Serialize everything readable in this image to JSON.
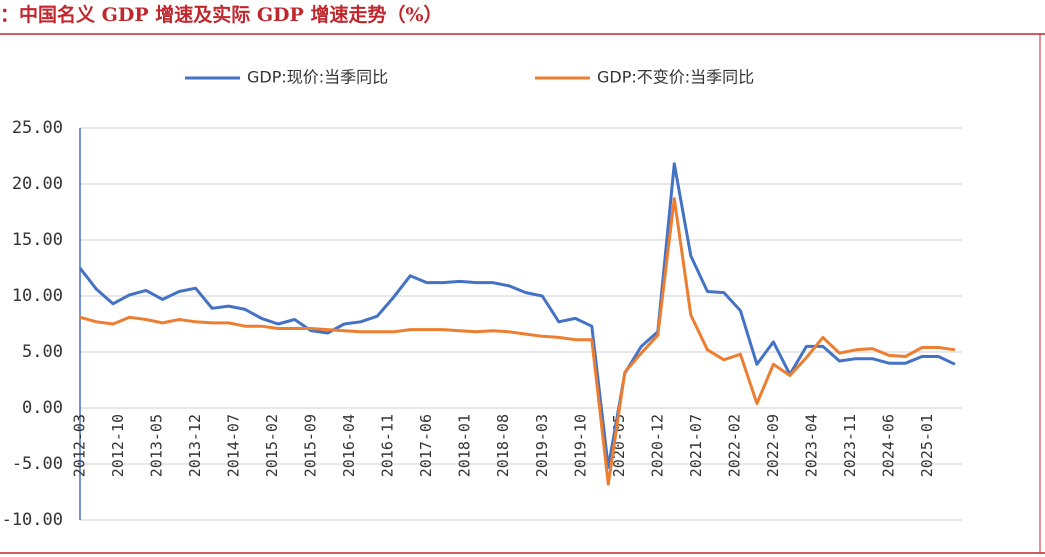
{
  "chart_data": {
    "type": "line",
    "title": "：中国名义 GDP 增速及实际 GDP 增速走势（%）",
    "x": [
      "2012-03",
      "2012-06",
      "2012-09",
      "2012-12",
      "2013-03",
      "2013-06",
      "2013-09",
      "2013-12",
      "2014-03",
      "2014-06",
      "2014-09",
      "2014-12",
      "2015-03",
      "2015-06",
      "2015-09",
      "2015-12",
      "2016-03",
      "2016-06",
      "2016-09",
      "2016-12",
      "2017-03",
      "2017-06",
      "2017-09",
      "2017-12",
      "2018-03",
      "2018-06",
      "2018-09",
      "2018-12",
      "2019-03",
      "2019-06",
      "2019-09",
      "2019-12",
      "2020-03",
      "2020-06",
      "2020-09",
      "2020-12",
      "2021-03",
      "2021-06",
      "2021-09",
      "2021-12",
      "2022-03",
      "2022-06",
      "2022-09",
      "2022-12",
      "2023-03",
      "2023-06",
      "2023-09",
      "2023-12",
      "2024-03",
      "2024-06",
      "2024-09",
      "2024-12",
      "2025-03",
      "2025-06"
    ],
    "series": [
      {
        "name": "GDP:现价:当季同比",
        "color": "#4472c4",
        "values": [
          12.5,
          10.6,
          9.3,
          10.1,
          10.5,
          9.7,
          10.4,
          10.7,
          8.9,
          9.1,
          8.8,
          8.0,
          7.5,
          7.9,
          6.9,
          6.7,
          7.5,
          7.7,
          8.2,
          9.9,
          11.8,
          11.2,
          11.2,
          11.3,
          11.2,
          11.2,
          10.9,
          10.3,
          10.0,
          7.7,
          8.0,
          7.3,
          -5.3,
          3.1,
          5.5,
          6.8,
          21.8,
          13.6,
          10.4,
          10.3,
          8.7,
          3.9,
          5.9,
          3.0,
          5.5,
          5.5,
          4.2,
          4.4,
          4.4,
          4.0,
          4.0,
          4.6,
          4.6,
          3.9
        ]
      },
      {
        "name": "GDP:不变价:当季同比",
        "color": "#ed7d31",
        "values": [
          8.1,
          7.7,
          7.5,
          8.1,
          7.9,
          7.6,
          7.9,
          7.7,
          7.6,
          7.6,
          7.3,
          7.3,
          7.1,
          7.1,
          7.1,
          7.0,
          6.9,
          6.8,
          6.8,
          6.8,
          7.0,
          7.0,
          7.0,
          6.9,
          6.8,
          6.9,
          6.8,
          6.6,
          6.4,
          6.3,
          6.1,
          6.1,
          -6.8,
          3.2,
          4.9,
          6.5,
          18.7,
          8.3,
          5.2,
          4.3,
          4.8,
          0.4,
          3.9,
          2.9,
          4.5,
          6.3,
          4.9,
          5.2,
          5.3,
          4.7,
          4.6,
          5.4,
          5.4,
          5.2
        ]
      }
    ],
    "xticks": [
      "2012-03",
      "2012-10",
      "2013-05",
      "2013-12",
      "2014-07",
      "2015-02",
      "2015-09",
      "2016-04",
      "2016-11",
      "2017-06",
      "2018-01",
      "2018-08",
      "2019-03",
      "2019-10",
      "2020-05",
      "2020-12",
      "2021-07",
      "2022-02",
      "2022-09",
      "2023-04",
      "2023-11",
      "2024-06",
      "2025-01"
    ],
    "ylim": [
      -10,
      25
    ],
    "yticks": [
      {
        "value": 25,
        "label": "25.00"
      },
      {
        "value": 20,
        "label": "20.00"
      },
      {
        "value": 15,
        "label": "15.00"
      },
      {
        "value": 10,
        "label": "10.00"
      },
      {
        "value": 5,
        "label": "5.00"
      },
      {
        "value": 0,
        "label": "0.00"
      },
      {
        "value": -5,
        "label": "-5.00"
      },
      {
        "value": -10,
        "label": "-10.00"
      }
    ],
    "grid": true,
    "legend": "top"
  }
}
